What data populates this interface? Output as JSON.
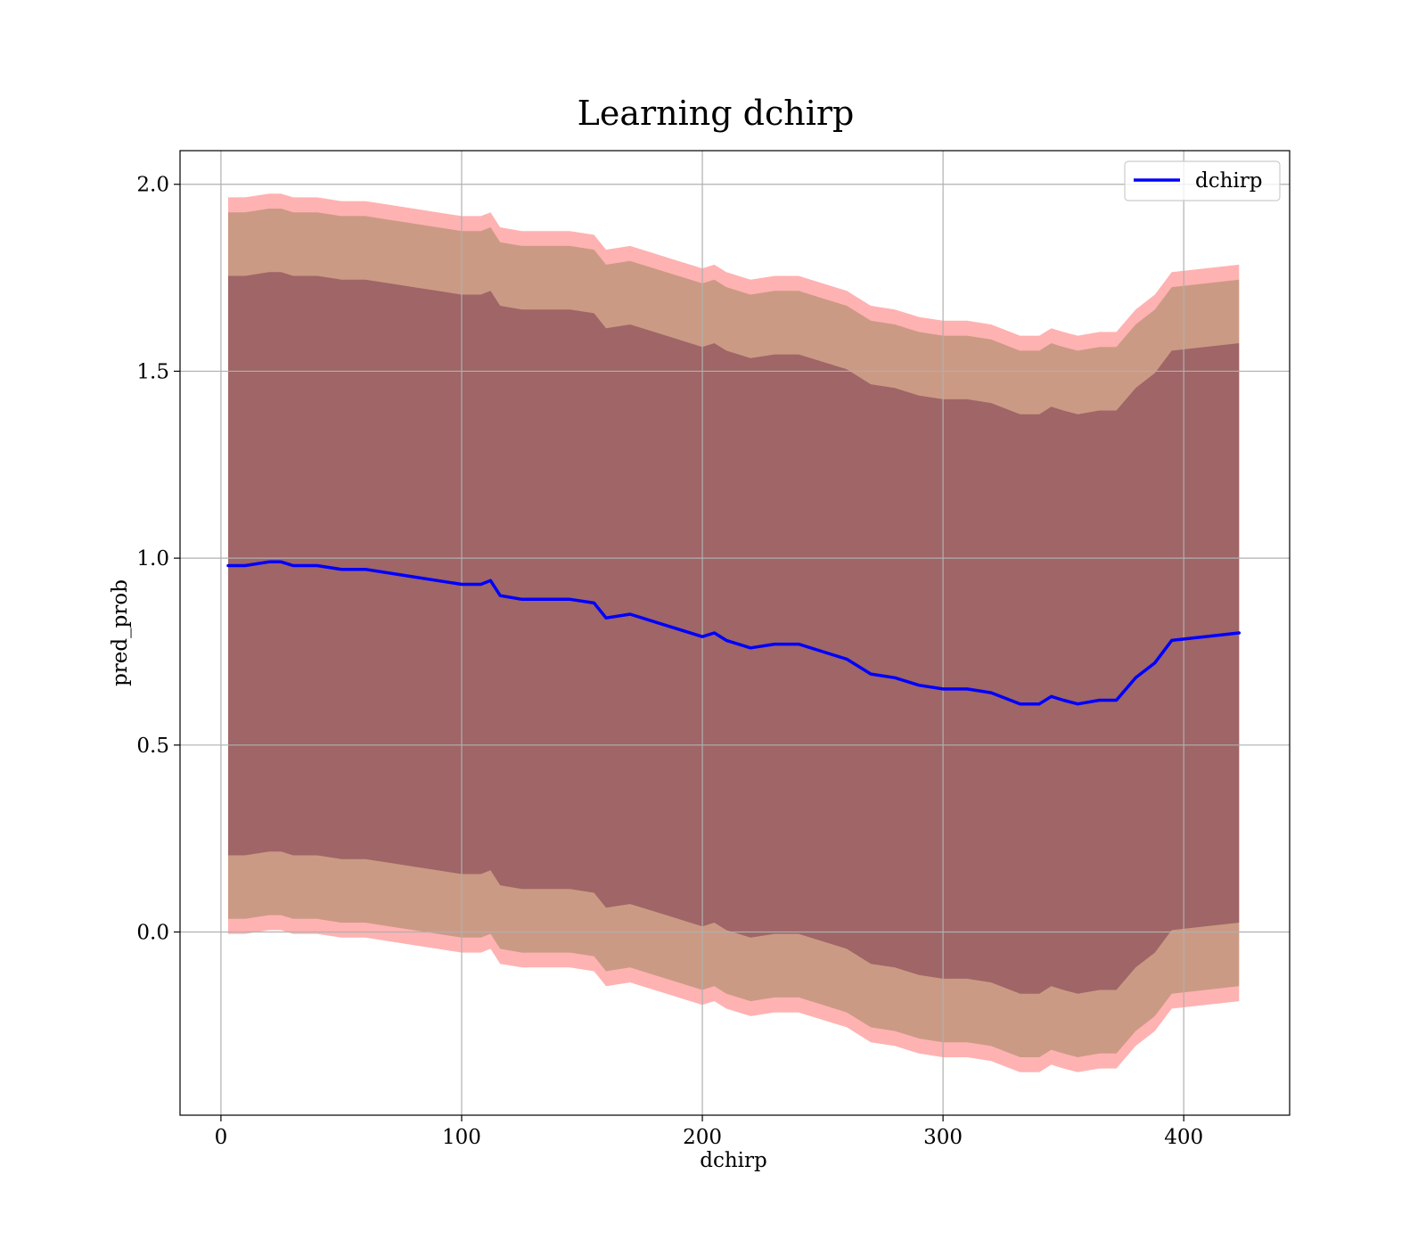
{
  "chart_data": {
    "type": "line",
    "title": "Learning dchirp",
    "xlabel": "dchirp",
    "ylabel": "pred_prob",
    "xlim": [
      -17,
      444
    ],
    "ylim": [
      -0.49,
      2.09
    ],
    "xticks": [
      0,
      100,
      200,
      300,
      400
    ],
    "yticks": [
      0.0,
      0.5,
      1.0,
      1.5,
      2.0
    ],
    "xtick_labels": [
      "0",
      "100",
      "200",
      "300",
      "400"
    ],
    "ytick_labels": [
      "0.0",
      "0.5",
      "1.0",
      "1.5",
      "2.0"
    ],
    "grid": true,
    "legend": {
      "placement": "top-right",
      "entries": [
        "dchirp"
      ]
    },
    "colors": {
      "line": "#0000ff",
      "band_outer": "#ff7f7f",
      "band_middle": "#8b7d4b",
      "band_inner": "#7b3a50"
    },
    "series": [
      {
        "name": "dchirp",
        "x": [
          3,
          10,
          20,
          25,
          30,
          40,
          50,
          60,
          70,
          80,
          90,
          100,
          108,
          112,
          116,
          125,
          135,
          145,
          155,
          160,
          170,
          180,
          190,
          200,
          205,
          210,
          220,
          230,
          240,
          250,
          260,
          270,
          280,
          290,
          300,
          310,
          320,
          328,
          332,
          340,
          345,
          350,
          356,
          365,
          372,
          380,
          388,
          395,
          423
        ],
        "y": [
          0.98,
          0.98,
          0.99,
          0.99,
          0.98,
          0.98,
          0.97,
          0.97,
          0.96,
          0.95,
          0.94,
          0.93,
          0.93,
          0.94,
          0.9,
          0.89,
          0.89,
          0.89,
          0.88,
          0.84,
          0.85,
          0.83,
          0.81,
          0.79,
          0.8,
          0.78,
          0.76,
          0.77,
          0.77,
          0.75,
          0.73,
          0.69,
          0.68,
          0.66,
          0.65,
          0.65,
          0.64,
          0.62,
          0.61,
          0.61,
          0.63,
          0.62,
          0.61,
          0.62,
          0.62,
          0.68,
          0.72,
          0.78,
          0.8
        ]
      }
    ],
    "bands": [
      {
        "half_width": 0.985,
        "color_key": "band_outer",
        "opacity": 0.6
      },
      {
        "half_width": 0.945,
        "color_key": "band_middle",
        "opacity": 0.45
      },
      {
        "half_width": 0.775,
        "color_key": "band_inner",
        "opacity": 0.55
      }
    ]
  }
}
